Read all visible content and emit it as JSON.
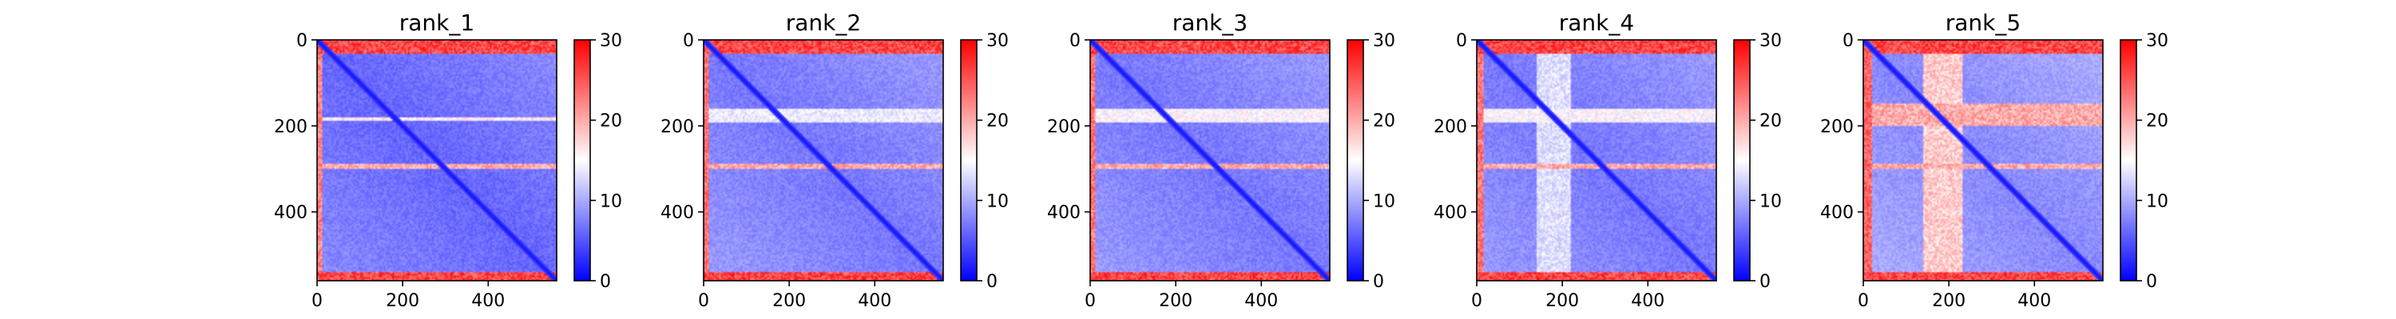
{
  "chart_data": [
    {
      "type": "heatmap",
      "title": "rank_1",
      "xlabel": "",
      "ylabel": "",
      "n_residues": 560,
      "xlim": [
        0,
        560
      ],
      "ylim": [
        560,
        0
      ],
      "xticks": [
        0,
        200,
        400
      ],
      "yticks": [
        0,
        200,
        400
      ],
      "colorbar": {
        "min": 0,
        "max": 30,
        "ticks": [
          0,
          10,
          20,
          30
        ],
        "colormap": "bwr"
      },
      "high_error_regions": [
        {
          "axis": "row",
          "range": [
            0,
            30
          ],
          "value": 28
        },
        {
          "axis": "row",
          "range": [
            540,
            560
          ],
          "value": 28
        },
        {
          "axis": "col",
          "range": [
            0,
            10
          ],
          "value": 24
        }
      ],
      "bands": [
        {
          "axis": "row",
          "range": [
            290,
            300
          ],
          "value": 20
        },
        {
          "axis": "row",
          "range": [
            180,
            188
          ],
          "value": 16
        }
      ],
      "baseline_value": 6,
      "diagonal_value": 1
    },
    {
      "type": "heatmap",
      "title": "rank_2",
      "xlabel": "",
      "ylabel": "",
      "n_residues": 560,
      "xlim": [
        0,
        560
      ],
      "ylim": [
        560,
        0
      ],
      "xticks": [
        0,
        200,
        400
      ],
      "yticks": [
        0,
        200,
        400
      ],
      "colorbar": {
        "min": 0,
        "max": 30,
        "ticks": [
          0,
          10,
          20,
          30
        ],
        "colormap": "bwr"
      },
      "high_error_regions": [
        {
          "axis": "row",
          "range": [
            0,
            30
          ],
          "value": 28
        },
        {
          "axis": "row",
          "range": [
            540,
            560
          ],
          "value": 28
        },
        {
          "axis": "col",
          "range": [
            0,
            12
          ],
          "value": 25
        }
      ],
      "bands": [
        {
          "axis": "row",
          "range": [
            290,
            300
          ],
          "value": 20
        },
        {
          "axis": "row",
          "range": [
            160,
            190
          ],
          "value": 14
        }
      ],
      "baseline_value": 7,
      "diagonal_value": 1
    },
    {
      "type": "heatmap",
      "title": "rank_3",
      "xlabel": "",
      "ylabel": "",
      "n_residues": 560,
      "xlim": [
        0,
        560
      ],
      "ylim": [
        560,
        0
      ],
      "xticks": [
        0,
        200,
        400
      ],
      "yticks": [
        0,
        200,
        400
      ],
      "colorbar": {
        "min": 0,
        "max": 30,
        "ticks": [
          0,
          10,
          20,
          30
        ],
        "colormap": "bwr"
      },
      "high_error_regions": [
        {
          "axis": "row",
          "range": [
            0,
            30
          ],
          "value": 28
        },
        {
          "axis": "row",
          "range": [
            540,
            560
          ],
          "value": 28
        },
        {
          "axis": "col",
          "range": [
            0,
            12
          ],
          "value": 25
        }
      ],
      "bands": [
        {
          "axis": "row",
          "range": [
            290,
            300
          ],
          "value": 20
        },
        {
          "axis": "row",
          "range": [
            160,
            190
          ],
          "value": 15
        }
      ],
      "baseline_value": 7,
      "diagonal_value": 1
    },
    {
      "type": "heatmap",
      "title": "rank_4",
      "xlabel": "",
      "ylabel": "",
      "n_residues": 560,
      "xlim": [
        0,
        560
      ],
      "ylim": [
        560,
        0
      ],
      "xticks": [
        0,
        200,
        400
      ],
      "yticks": [
        0,
        200,
        400
      ],
      "colorbar": {
        "min": 0,
        "max": 30,
        "ticks": [
          0,
          10,
          20,
          30
        ],
        "colormap": "bwr"
      },
      "high_error_regions": [
        {
          "axis": "row",
          "range": [
            0,
            30
          ],
          "value": 28
        },
        {
          "axis": "row",
          "range": [
            540,
            560
          ],
          "value": 28
        },
        {
          "axis": "col",
          "range": [
            0,
            14
          ],
          "value": 25
        }
      ],
      "bands": [
        {
          "axis": "row",
          "range": [
            290,
            300
          ],
          "value": 20
        },
        {
          "axis": "row",
          "range": [
            160,
            190
          ],
          "value": 15
        },
        {
          "axis": "col",
          "range": [
            140,
            220
          ],
          "value": 13
        }
      ],
      "baseline_value": 7,
      "diagonal_value": 1
    },
    {
      "type": "heatmap",
      "title": "rank_5",
      "xlabel": "",
      "ylabel": "",
      "n_residues": 560,
      "xlim": [
        0,
        560
      ],
      "ylim": [
        560,
        0
      ],
      "xticks": [
        0,
        200,
        400
      ],
      "yticks": [
        0,
        200,
        400
      ],
      "colorbar": {
        "min": 0,
        "max": 30,
        "ticks": [
          0,
          10,
          20,
          30
        ],
        "colormap": "bwr"
      },
      "high_error_regions": [
        {
          "axis": "row",
          "range": [
            0,
            30
          ],
          "value": 28
        },
        {
          "axis": "row",
          "range": [
            540,
            560
          ],
          "value": 28
        },
        {
          "axis": "col",
          "range": [
            0,
            20
          ],
          "value": 26
        }
      ],
      "bands": [
        {
          "axis": "row",
          "range": [
            290,
            300
          ],
          "value": 20
        },
        {
          "axis": "row",
          "range": [
            150,
            200
          ],
          "value": 20
        },
        {
          "axis": "col",
          "range": [
            140,
            230
          ],
          "value": 18
        }
      ],
      "baseline_value": 8,
      "diagonal_value": 1
    }
  ]
}
